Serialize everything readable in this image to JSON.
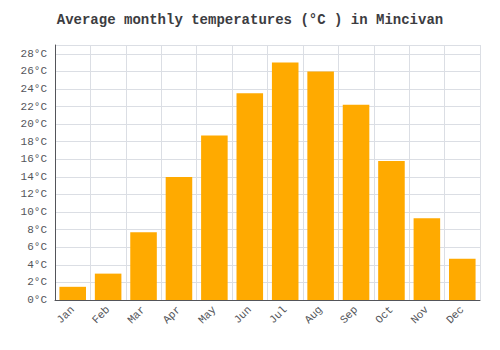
{
  "chart_data": {
    "type": "bar",
    "title": "Average monthly temperatures (°C ) in Mincivan",
    "categories": [
      "Jan",
      "Feb",
      "Mar",
      "Apr",
      "May",
      "Jun",
      "Jul",
      "Aug",
      "Sep",
      "Oct",
      "Nov",
      "Dec"
    ],
    "values": [
      1.5,
      3.0,
      7.7,
      14.0,
      18.7,
      23.5,
      27.0,
      26.0,
      22.2,
      15.8,
      9.3,
      4.7
    ],
    "color": "#FFAA00",
    "ylim": [
      0,
      29
    ],
    "yticks": [
      {
        "value": 0,
        "label": "0°C"
      },
      {
        "value": 2,
        "label": "2°C"
      },
      {
        "value": 4,
        "label": "4°C"
      },
      {
        "value": 6,
        "label": "6°C"
      },
      {
        "value": 8,
        "label": "8°C"
      },
      {
        "value": 10,
        "label": "10°C"
      },
      {
        "value": 12,
        "label": "12°C"
      },
      {
        "value": 14,
        "label": "14°C"
      },
      {
        "value": 16,
        "label": "16°C"
      },
      {
        "value": 18,
        "label": "18°C"
      },
      {
        "value": 20,
        "label": "20°C"
      },
      {
        "value": 22,
        "label": "22°C"
      },
      {
        "value": 24,
        "label": "24°C"
      },
      {
        "value": 26,
        "label": "26°C"
      },
      {
        "value": 28,
        "label": "28°C"
      }
    ],
    "grid": true
  }
}
